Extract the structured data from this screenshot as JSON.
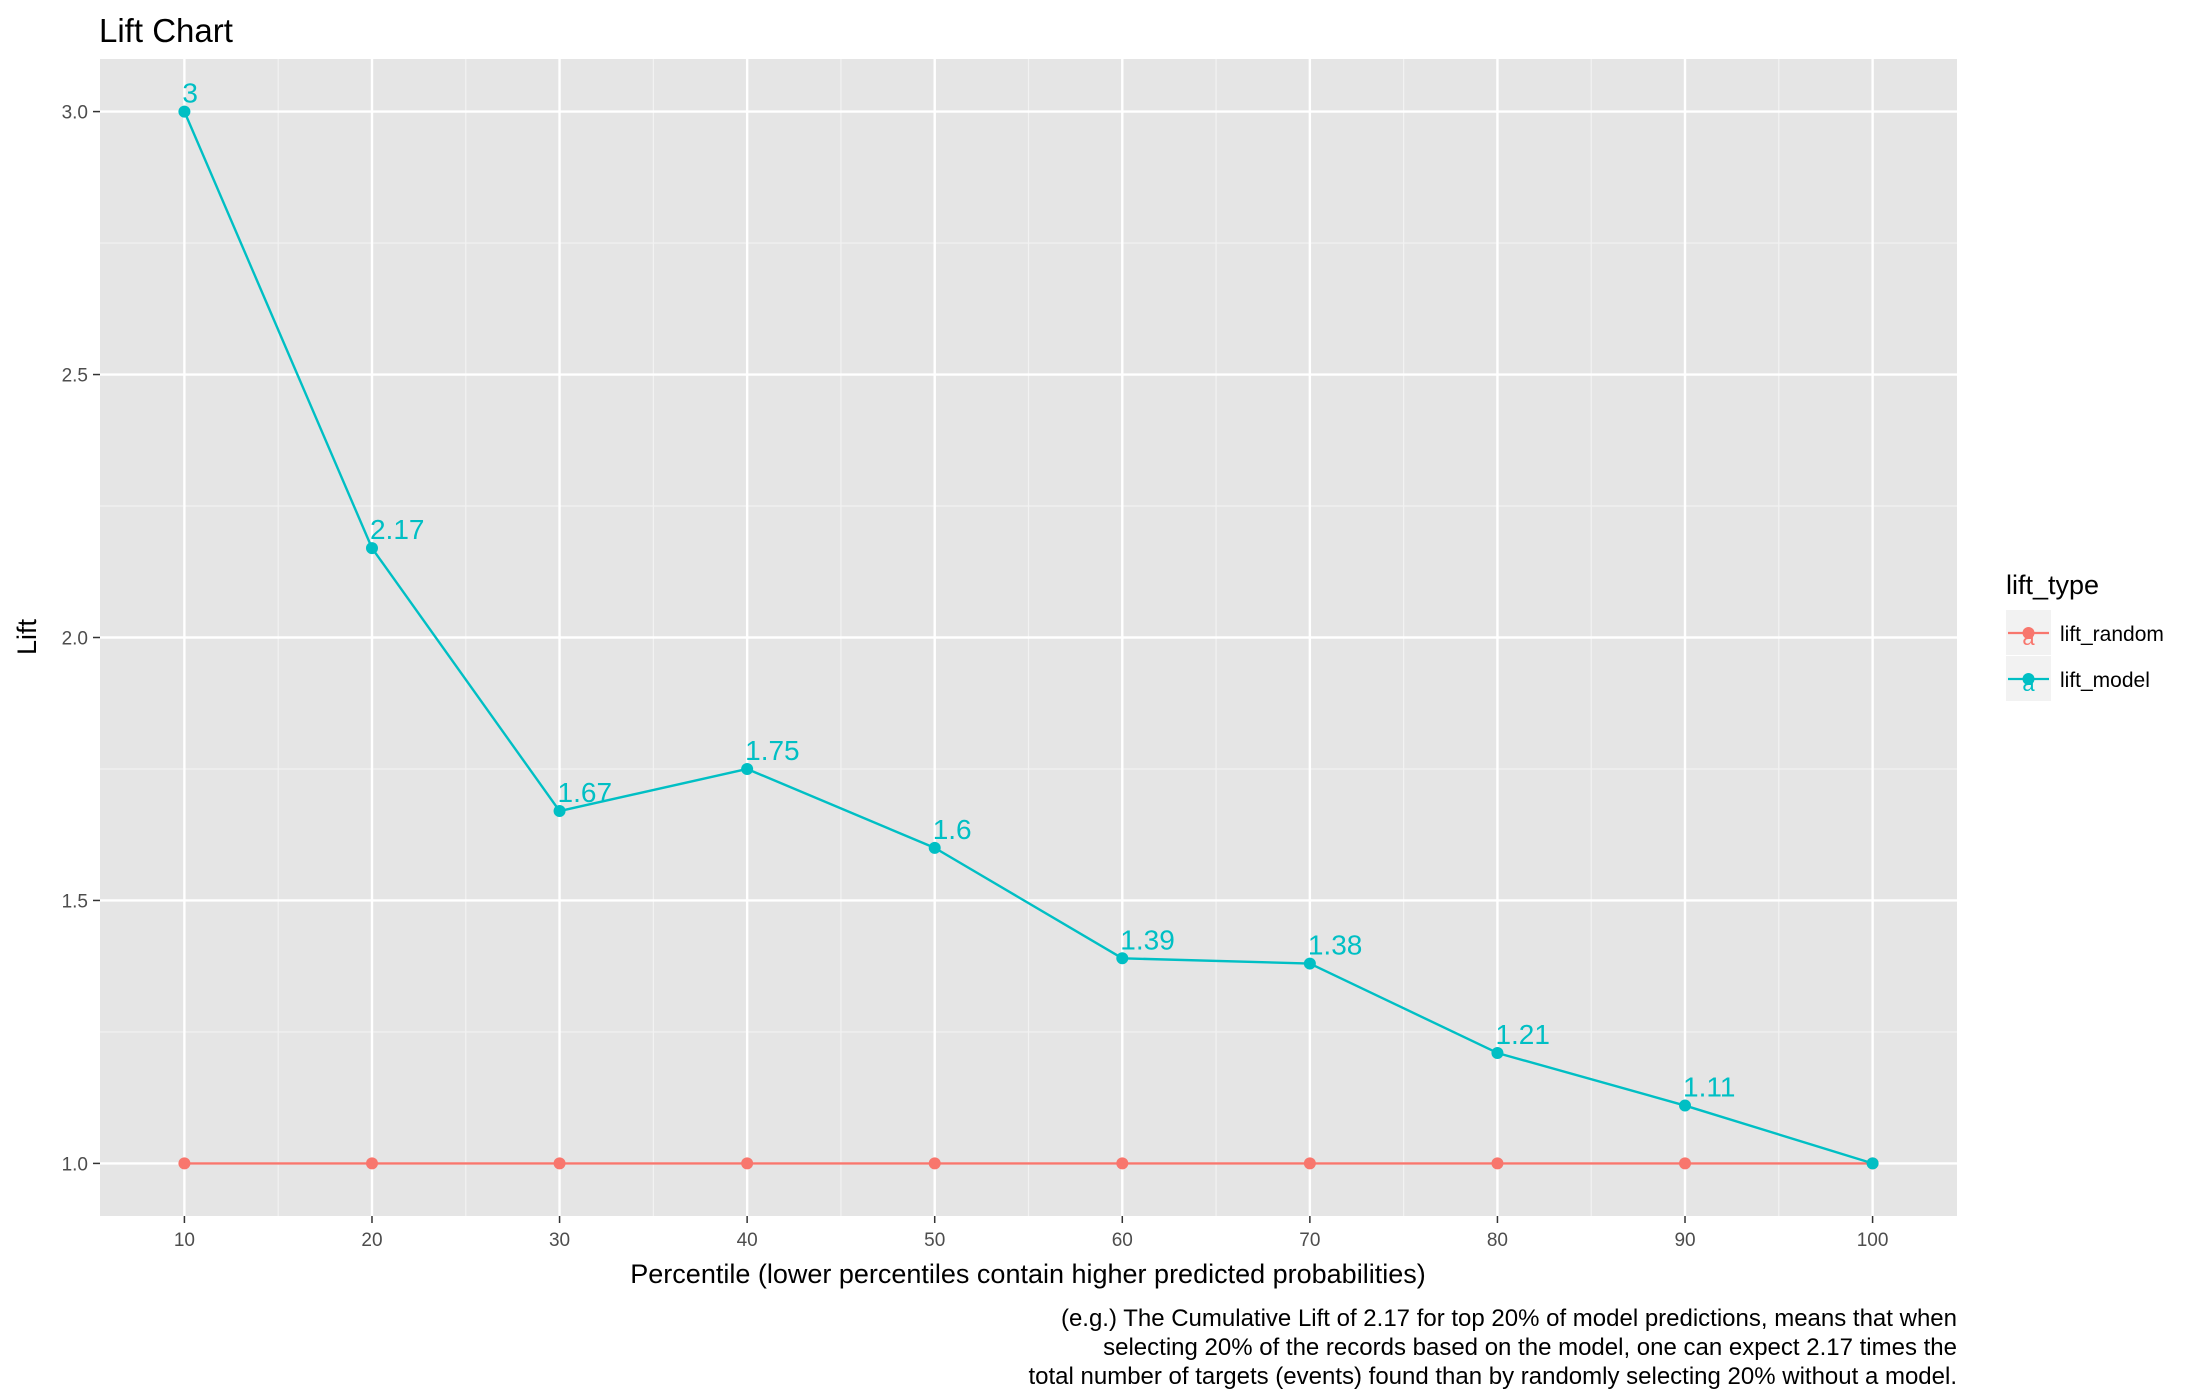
{
  "chart_data": {
    "type": "line",
    "title": "Lift Chart",
    "xlabel": "Percentile (lower percentiles contain higher predicted probabilities)",
    "ylabel": "Lift",
    "x": [
      10,
      20,
      30,
      40,
      50,
      60,
      70,
      80,
      90,
      100
    ],
    "x_ticks": [
      "10",
      "20",
      "30",
      "40",
      "50",
      "60",
      "70",
      "80",
      "90",
      "100"
    ],
    "xlim": [
      5.5,
      104.5
    ],
    "y_ticks": [
      "1.0",
      "1.5",
      "2.0",
      "2.5",
      "3.0"
    ],
    "ylim": [
      0.9,
      3.1
    ],
    "grid": true,
    "legend": {
      "title": "lift_type",
      "position": "right",
      "glyph_text": "a"
    },
    "series": [
      {
        "name": "lift_random",
        "color": "#F8766D",
        "values": [
          1,
          1,
          1,
          1,
          1,
          1,
          1,
          1,
          1,
          1
        ],
        "labels": []
      },
      {
        "name": "lift_model",
        "color": "#00BFC4",
        "values": [
          3,
          2.17,
          1.67,
          1.75,
          1.6,
          1.39,
          1.38,
          1.21,
          1.11,
          1
        ],
        "labels": [
          "3",
          "2.17",
          "1.67",
          "1.75",
          "1.6",
          "1.39",
          "1.38",
          "1.21",
          "1.11",
          ""
        ]
      }
    ],
    "caption": [
      "(e.g.) The Cumulative Lift of 2.17 for top 20% of model predictions, means that when",
      "selecting 20% of the records based on the model, one can expect 2.17 times the",
      "total number of targets (events) found than by randomly selecting 20% without a model."
    ]
  }
}
